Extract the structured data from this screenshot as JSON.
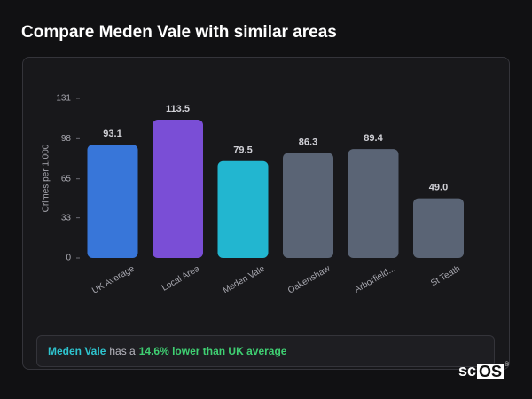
{
  "heading": "Compare Meden Vale with similar areas",
  "chart_data": {
    "type": "bar",
    "y_label": "Crimes per 1,000",
    "categories": [
      "UK Average",
      "Local Area",
      "Meden Vale",
      "Oakenshaw",
      "Arborfield...",
      "St Teath"
    ],
    "values": [
      93.1,
      113.5,
      79.5,
      86.3,
      89.4,
      49.0
    ],
    "value_labels": [
      "93.1",
      "113.5",
      "79.5",
      "86.3",
      "89.4",
      "49.0"
    ],
    "colors": [
      "#3876d9",
      "#7a4ed6",
      "#22b6d0",
      "#5a6475",
      "#5a6475",
      "#5a6475"
    ],
    "ylim": [
      0,
      131
    ],
    "yticks": [
      0,
      33,
      65,
      98,
      131
    ],
    "grid": false
  },
  "summary": {
    "area": "Meden Vale",
    "middle": "has a",
    "comparison": "14.6% lower than UK average"
  },
  "logo": {
    "left": "sc",
    "boxed": "OS",
    "mark": "®"
  }
}
